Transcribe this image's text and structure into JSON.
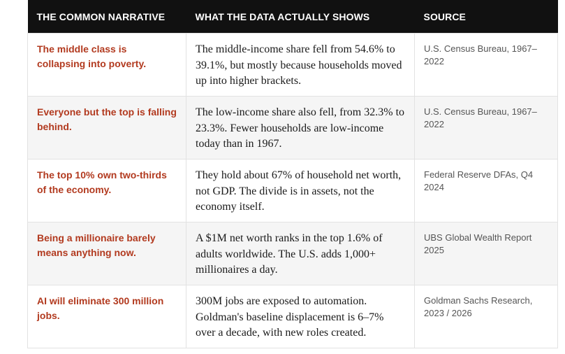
{
  "table": {
    "headers": [
      "THE COMMON NARRATIVE",
      "WHAT THE DATA ACTUALLY SHOWS",
      "SOURCE"
    ],
    "rows": [
      {
        "narrative": "The middle class is collapsing into poverty.",
        "data": "The middle-income share fell from 54.6% to 39.1%, but mostly because households moved up into higher brackets.",
        "source": "U.S. Census Bureau, 1967–2022"
      },
      {
        "narrative": "Everyone but the top is falling behind.",
        "data": "The low-income share also fell, from 32.3% to 23.3%. Fewer households are low-income today than in 1967.",
        "source": "U.S. Census Bureau, 1967–2022"
      },
      {
        "narrative": "The top 10% own two-thirds of the economy.",
        "data": "They hold about 67% of household net worth, not GDP. The divide is in assets, not the economy itself.",
        "source": "Federal Reserve DFAs, Q4 2024"
      },
      {
        "narrative": "Being a millionaire barely means anything now.",
        "data": "A $1M net worth ranks in the top 1.6% of adults worldwide. The U.S. adds 1,000+ millionaires a day.",
        "source": "UBS Global Wealth Report 2025"
      },
      {
        "narrative": "AI will eliminate 300 million jobs.",
        "data": "300M jobs are exposed to automation. Goldman's baseline displacement is 6–7% over a decade, with new roles created.",
        "source": "Goldman Sachs Research, 2023 / 2026"
      }
    ]
  },
  "colors": {
    "header_bg": "#111111",
    "header_text": "#ffffff",
    "narrative_text": "#b23a1f",
    "row_alt_bg": "#f5f5f5"
  }
}
